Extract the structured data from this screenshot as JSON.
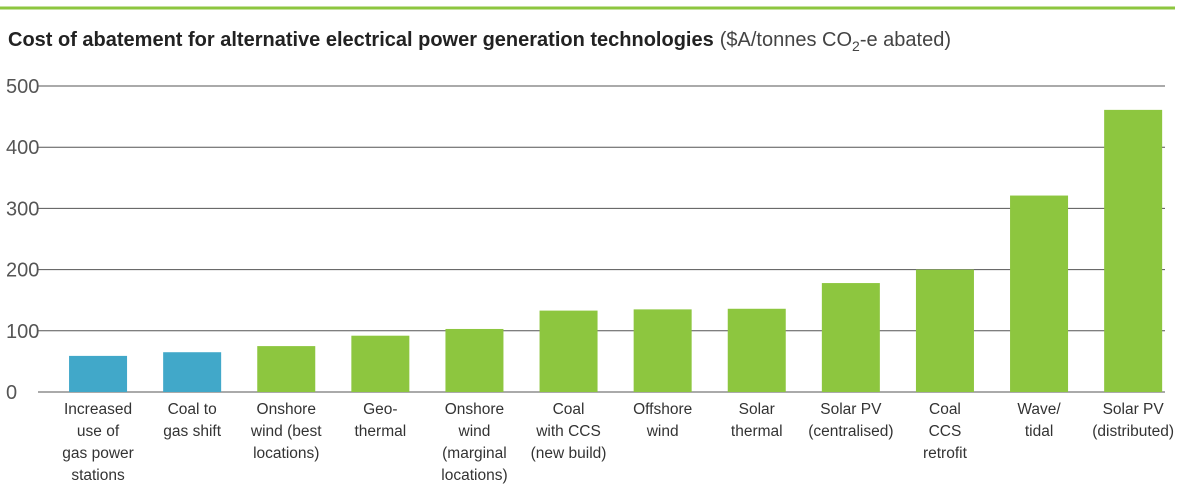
{
  "chart_data": {
    "type": "bar",
    "title": "Cost of abatement for alternative electrical power generation technologies",
    "subtitle": {
      "before": "($A/tonnes CO",
      "sub": "2",
      "after": "-e abated)"
    },
    "categories": [
      [
        "Increased",
        "use of",
        "gas power",
        "stations"
      ],
      [
        "Coal to",
        "gas shift"
      ],
      [
        "Onshore",
        "wind (best",
        "locations)"
      ],
      [
        "Geo-",
        "thermal"
      ],
      [
        "Onshore",
        "wind",
        "(marginal",
        "locations)"
      ],
      [
        "Coal",
        "with CCS",
        "(new build)"
      ],
      [
        "Offshore",
        "wind"
      ],
      [
        "Solar",
        "thermal"
      ],
      [
        "Solar PV",
        "(centralised)"
      ],
      [
        "Coal",
        "CCS",
        "retrofit"
      ],
      [
        "Wave/",
        "tidal"
      ],
      [
        "Solar PV",
        "(distributed)"
      ]
    ],
    "values": [
      59,
      65,
      75,
      92,
      103,
      133,
      135,
      136,
      178,
      200,
      321,
      461
    ],
    "colors": [
      "#41a8c9",
      "#41a8c9",
      "#8dc63f",
      "#8dc63f",
      "#8dc63f",
      "#8dc63f",
      "#8dc63f",
      "#8dc63f",
      "#8dc63f",
      "#8dc63f",
      "#8dc63f",
      "#8dc63f"
    ],
    "ylim": [
      0,
      500
    ],
    "yticks": [
      0,
      100,
      200,
      300,
      400,
      500
    ],
    "grid": true
  }
}
